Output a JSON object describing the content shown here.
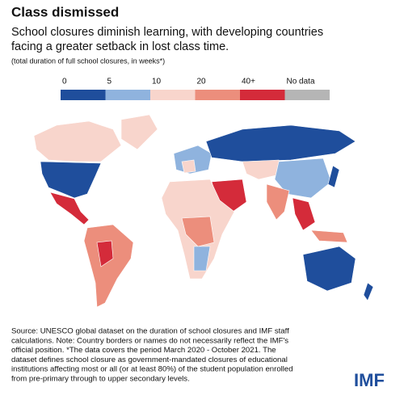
{
  "header": {
    "title": "Class dismissed",
    "subtitle_lines": [
      "School closures diminish learning, with developing countries",
      "facing a greater setback in lost class time."
    ],
    "note": "(total duration of full school closures, in weeks*)"
  },
  "legend": {
    "labels": [
      "0",
      "5",
      "10",
      "20",
      "40+",
      "No data"
    ],
    "colors": [
      "#1f4e9c",
      "#8fb3de",
      "#f8d5cc",
      "#ec8e7c",
      "#d42b3a",
      "#b5b5b5"
    ]
  },
  "source": {
    "lines": [
      "Source: UNESCO global dataset on the duration of school closures and IMF staff",
      "calculations. Note: Country borders or names do not necessarily reflect the IMF's",
      "official position. *The data covers the period March 2020 - October 2021. The",
      "dataset defines school closure as government-mandated closures of educational",
      "institutions affecting most or all (or at least 80%) of the student population enrolled",
      "from pre-primary through to upper secondary levels."
    ]
  },
  "logo": "IMF"
}
